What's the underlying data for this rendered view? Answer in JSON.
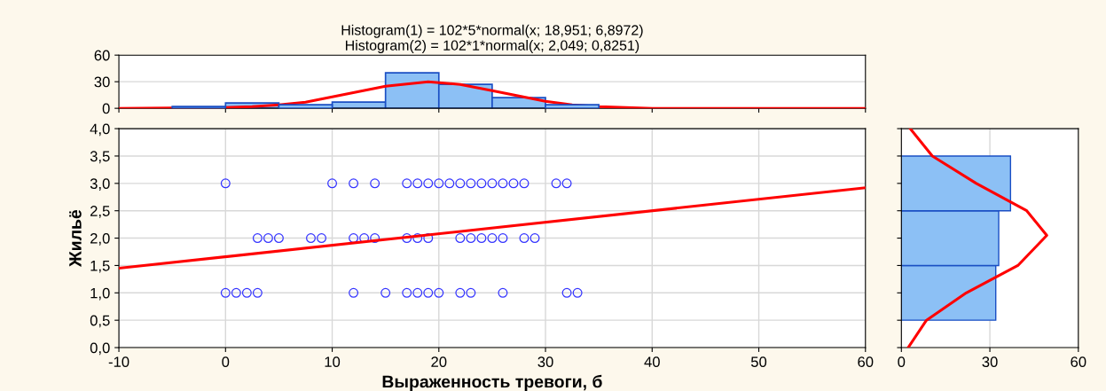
{
  "chart_data": [
    {
      "type": "histogram",
      "title": "Histogram(1) = 102*5*normal(x; 18,951; 6,8972)\nHistogram(2) = 102*1*normal(x; 2,049; 0,8251)",
      "bins": [
        -5,
        0,
        5,
        10,
        15,
        20,
        25,
        30,
        35
      ],
      "values": [
        2,
        6,
        4,
        7,
        40,
        27,
        12,
        4
      ],
      "color": "#8cc0f5",
      "xlim": [
        -10,
        60
      ],
      "xticks": [
        {
          "value": -10,
          "label": null
        },
        {
          "value": 0,
          "label": null
        },
        {
          "value": 10,
          "label": null
        },
        {
          "value": 20,
          "label": null
        },
        {
          "value": 30,
          "label": null
        },
        {
          "value": 40,
          "label": null
        },
        {
          "value": 50,
          "label": null
        },
        {
          "value": 60,
          "label": null
        }
      ],
      "ylim": [
        0,
        60
      ],
      "yticks": [
        0,
        30,
        60
      ],
      "grid": "y",
      "tick_labels": "y",
      "series": [
        {
          "type": "line",
          "color": "#ff0000",
          "x": [
            -10,
            0,
            2.5,
            5,
            7.5,
            10,
            12.5,
            15,
            19,
            22,
            25,
            27.5,
            30,
            32.5,
            35,
            40,
            50,
            60
          ],
          "values": [
            0,
            1,
            2,
            4,
            7,
            13,
            19,
            25,
            30,
            27,
            20,
            14,
            8,
            4,
            2,
            0,
            0,
            0
          ]
        }
      ]
    },
    {
      "type": "scatter",
      "xlabel": "Выраженность тревоги, б",
      "ylabel": "Жильё",
      "xlim": [
        -10,
        60
      ],
      "xticks": [
        -10,
        0,
        10,
        20,
        30,
        40,
        50,
        60
      ],
      "ylim": [
        0,
        4
      ],
      "yticks": [
        {
          "value": 0,
          "label": "0,0"
        },
        {
          "value": 0.5,
          "label": "0,5"
        },
        {
          "value": 1,
          "label": "1,0"
        },
        {
          "value": 1.5,
          "label": "1,5"
        },
        {
          "value": 2,
          "label": "2,0"
        },
        {
          "value": 2.5,
          "label": "2,5"
        },
        {
          "value": 3,
          "label": "3,0"
        },
        {
          "value": 3.5,
          "label": "3,5"
        },
        {
          "value": 4,
          "label": "4,0"
        }
      ],
      "grid": true,
      "marker": "circle",
      "series": [
        {
          "type": "scatter",
          "color": "#3333ff",
          "x": [
            0,
            10,
            12,
            14,
            17,
            18,
            19,
            20,
            21,
            22,
            23,
            24,
            25,
            26,
            27,
            28,
            31,
            32,
            3,
            4,
            5,
            8,
            9,
            12,
            13,
            14,
            17,
            18,
            19,
            22,
            23,
            24,
            25,
            26,
            28,
            29,
            0,
            1,
            2,
            3,
            12,
            15,
            17,
            18,
            19,
            20,
            22,
            23,
            26,
            32,
            33
          ],
          "values": [
            3,
            3,
            3,
            3,
            3,
            3,
            3,
            3,
            3,
            3,
            3,
            3,
            3,
            3,
            3,
            3,
            3,
            3,
            2,
            2,
            2,
            2,
            2,
            2,
            2,
            2,
            2,
            2,
            2,
            2,
            2,
            2,
            2,
            2,
            2,
            2,
            1,
            1,
            1,
            1,
            1,
            1,
            1,
            1,
            1,
            1,
            1,
            1,
            1,
            1,
            1
          ]
        },
        {
          "type": "line",
          "color": "#ff0000",
          "marker": "none",
          "x": [
            -10,
            60
          ],
          "values": [
            1.45,
            2.92
          ]
        }
      ]
    },
    {
      "type": "histogram",
      "orientation": "horizontal",
      "bins": [
        0.5,
        1.5,
        2.5,
        3.5
      ],
      "values": [
        32,
        33,
        37
      ],
      "color": "#8cc0f5",
      "xlim": [
        0,
        60
      ],
      "xticks": [
        0,
        30,
        60
      ],
      "ylim": [
        0,
        4
      ],
      "yticks": [
        {
          "value": 0,
          "label": null
        },
        {
          "value": 0.5,
          "label": null
        },
        {
          "value": 1,
          "label": null
        },
        {
          "value": 1.5,
          "label": null
        },
        {
          "value": 2,
          "label": null
        },
        {
          "value": 2.5,
          "label": null
        },
        {
          "value": 3,
          "label": null
        },
        {
          "value": 3.5,
          "label": null
        },
        {
          "value": 4,
          "label": null
        }
      ],
      "grid": "x",
      "tick_labels": "x",
      "series": [
        {
          "type": "line",
          "color": "#ff0000",
          "x": [
            0,
            0.5,
            1,
            1.5,
            2.05,
            2.5,
            3,
            3.5,
            4
          ],
          "values": [
            2.3,
            8.5,
            22,
            39.5,
            49.3,
            42.5,
            25.4,
            10.5,
            3
          ]
        }
      ]
    }
  ]
}
